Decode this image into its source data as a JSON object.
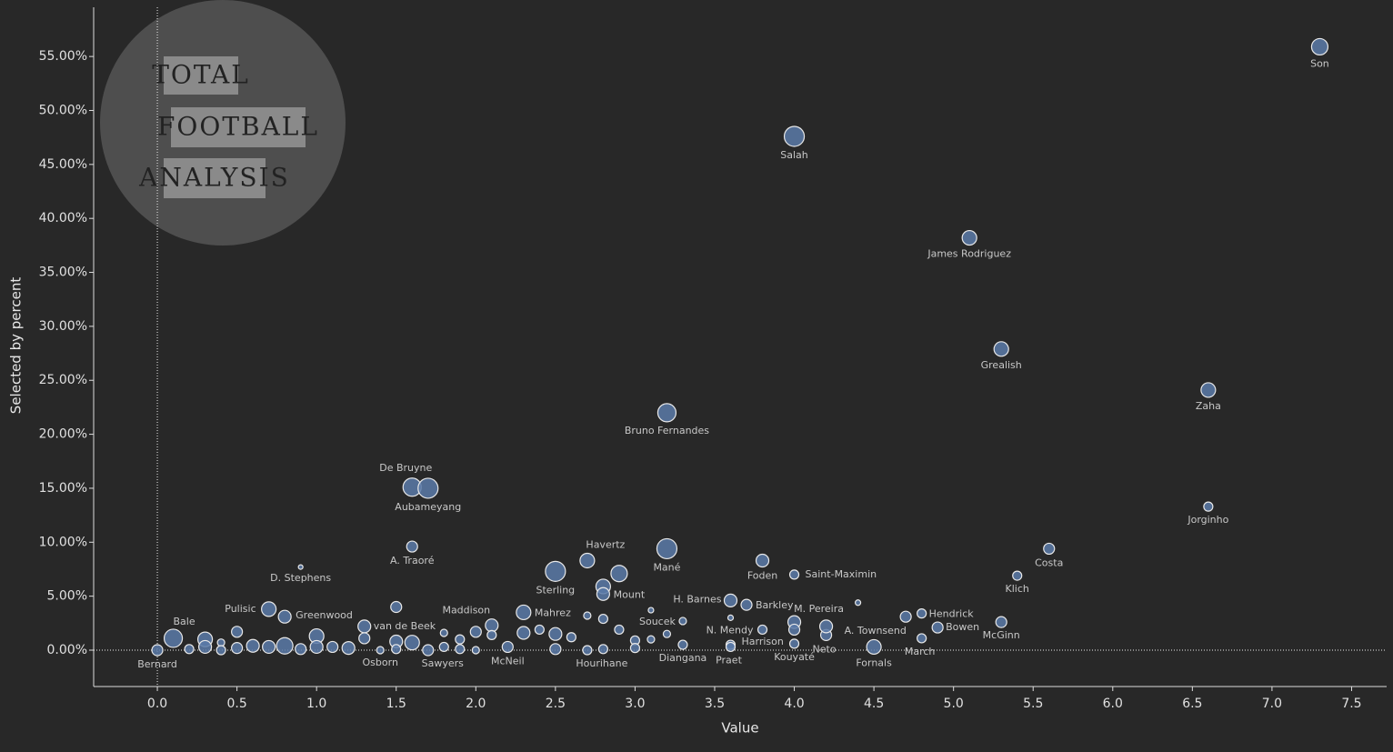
{
  "chart_data": {
    "type": "scatter",
    "x_label": "Value",
    "y_label": "Selected by percent",
    "logo": [
      "TOTAL",
      "FOOTBALL",
      "ANALYSIS"
    ],
    "xlim": [
      -0.4,
      7.72
    ],
    "ylim": [
      -3.37,
      59.56
    ],
    "xticks": [
      {
        "value": 0,
        "label": "0.0"
      },
      0.5,
      {
        "value": 1,
        "label": "1.0"
      },
      1.5,
      {
        "value": 2,
        "label": "2.0"
      },
      2.5,
      {
        "value": 3,
        "label": "3.0"
      },
      3.5,
      {
        "value": 4,
        "label": "4.0"
      },
      4.5,
      {
        "value": 5,
        "label": "5.0"
      },
      5.5,
      {
        "value": 6,
        "label": "6.0"
      },
      6.5,
      {
        "value": 7,
        "label": "7.0"
      },
      7.5
    ],
    "yticks": [
      {
        "value": 0,
        "label": "0.00%"
      },
      {
        "value": 5,
        "label": "5.00%"
      },
      {
        "value": 10,
        "label": "10.00%"
      },
      {
        "value": 15,
        "label": "15.00%"
      },
      {
        "value": 20,
        "label": "20.00%"
      },
      {
        "value": 25,
        "label": "25.00%"
      },
      {
        "value": 30,
        "label": "30.00%"
      },
      {
        "value": 35,
        "label": "35.00%"
      },
      {
        "value": 40,
        "label": "40.00%"
      },
      {
        "value": 45,
        "label": "45.00%"
      },
      {
        "value": 50,
        "label": "50.00%"
      },
      {
        "value": 55,
        "label": "55.00%"
      }
    ],
    "color": "#5a7aa8",
    "zero_lines": true,
    "labels": [
      "Son",
      "Salah",
      "James Rodriguez",
      "Grealish",
      "Zaha",
      "Bruno Fernandes",
      "Jorginho",
      "De Bruyne",
      "Aubameyang",
      "A. Traoré",
      "D. Stephens",
      "Havertz",
      "Sterling",
      "Mané",
      "Mount",
      "Foden",
      "Saint-Maximin",
      "Costa",
      "Klich",
      "Pulisic",
      "Greenwood",
      "Bale",
      "Bernard",
      "van de Beek",
      "Osborn",
      "Maddison",
      "Sawyers",
      "McNeil",
      "Mahrez",
      "Hourihane",
      "Soucek",
      "Diangana",
      "H. Barnes",
      "Barkley",
      "N. Mendy",
      "Harrison",
      "Praet",
      "M. Pereira",
      "Kouyaté",
      "Neto",
      "A. Townsend",
      "Fornals",
      "Hendrick",
      "March",
      "Bowen",
      "McGinn",
      null,
      null,
      null,
      null,
      null,
      null,
      null,
      null,
      null,
      null,
      null,
      null,
      null,
      null,
      null,
      null,
      null,
      null,
      null,
      null,
      null,
      null,
      null,
      null,
      null,
      null,
      null,
      null,
      null,
      null,
      null,
      null,
      null,
      null,
      null,
      null,
      null,
      null,
      null,
      null,
      null,
      null,
      null,
      null,
      null,
      null,
      null
    ],
    "x": [
      7.3,
      4.0,
      5.1,
      5.3,
      6.6,
      3.2,
      6.6,
      1.6,
      1.7,
      1.6,
      0.9,
      2.7,
      2.5,
      3.2,
      2.9,
      3.8,
      4.0,
      5.6,
      5.4,
      0.7,
      0.8,
      0.1,
      0.0,
      1.3,
      1.4,
      2.1,
      1.7,
      2.2,
      2.3,
      2.7,
      3.1,
      3.3,
      3.6,
      3.7,
      3.8,
      3.6,
      3.6,
      4.0,
      4.0,
      4.2,
      4.2,
      4.5,
      4.8,
      4.8,
      4.9,
      5.3,
      0.2,
      0.3,
      0.3,
      0.4,
      0.4,
      0.5,
      0.5,
      0.6,
      0.7,
      0.8,
      0.9,
      1.0,
      1.0,
      1.1,
      1.2,
      1.3,
      1.5,
      1.5,
      1.5,
      1.6,
      1.8,
      1.8,
      1.9,
      1.9,
      2.0,
      2.0,
      2.1,
      2.3,
      2.4,
      2.5,
      2.5,
      2.6,
      2.7,
      2.8,
      2.8,
      2.8,
      2.8,
      2.9,
      3.0,
      3.0,
      3.1,
      3.2,
      3.3,
      3.6,
      4.0,
      4.4,
      4.7
    ],
    "values": [
      55.9,
      47.6,
      38.2,
      27.9,
      24.1,
      22.0,
      13.3,
      15.1,
      15.0,
      9.6,
      7.7,
      8.3,
      7.3,
      9.4,
      7.1,
      8.3,
      7.0,
      9.4,
      6.9,
      3.8,
      3.1,
      1.1,
      0.0,
      2.2,
      0.0,
      2.3,
      0.0,
      0.3,
      3.5,
      0.0,
      3.7,
      0.5,
      4.6,
      4.2,
      1.9,
      0.5,
      0.3,
      2.6,
      0.6,
      1.4,
      2.2,
      0.3,
      3.4,
      1.1,
      2.1,
      2.6,
      0.1,
      1.0,
      0.3,
      0.7,
      0.0,
      1.7,
      0.2,
      0.4,
      0.3,
      0.4,
      0.1,
      1.3,
      0.3,
      0.3,
      0.2,
      1.1,
      4.0,
      0.8,
      0.1,
      0.7,
      1.6,
      0.3,
      1.0,
      0.1,
      1.7,
      0.0,
      1.4,
      1.6,
      1.9,
      1.5,
      0.1,
      1.2,
      3.2,
      5.9,
      5.2,
      2.9,
      0.1,
      1.9,
      0.9,
      0.2,
      1.0,
      1.5,
      2.7,
      3.0,
      1.9,
      4.4,
      3.1
    ],
    "sizes": [
      9,
      11,
      8,
      8,
      8,
      10,
      5,
      10,
      11,
      6,
      2.5,
      8,
      11,
      11,
      9,
      7,
      5,
      6,
      5,
      8,
      7,
      10,
      6,
      7,
      4,
      7,
      6,
      6,
      8,
      5,
      3,
      5,
      7,
      6,
      5,
      5,
      5,
      7,
      5,
      6,
      7,
      8,
      5,
      5,
      6,
      6,
      5,
      8,
      7,
      4,
      5,
      6,
      6,
      7,
      7,
      9,
      6,
      8,
      7,
      6,
      7,
      6,
      6,
      7,
      5,
      8,
      4,
      5,
      5,
      5,
      6,
      4,
      5,
      7,
      5,
      7,
      6,
      5,
      4,
      8,
      7,
      5,
      5,
      5,
      5,
      5,
      4,
      4,
      4,
      3,
      6,
      3,
      6
    ]
  }
}
